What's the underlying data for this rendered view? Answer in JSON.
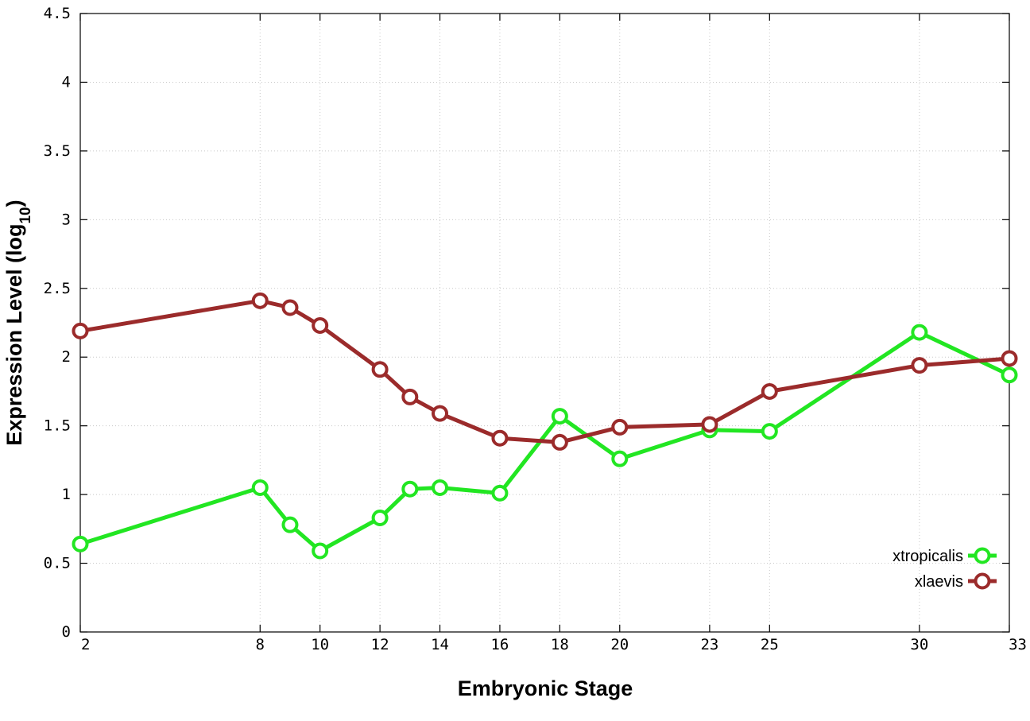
{
  "chart_data": {
    "type": "line",
    "title": "",
    "xlabel": "Embryonic Stage",
    "ylabel_main": "Expression Level (log",
    "ylabel_sub": "10",
    "ylabel_close": ")",
    "xlim": [
      2,
      33
    ],
    "ylim": [
      0,
      4.5
    ],
    "x_ticks": [
      2,
      8,
      10,
      12,
      14,
      16,
      18,
      20,
      23,
      25,
      30,
      33
    ],
    "x_tick_labels": [
      "2",
      "8",
      "10",
      "12",
      "14",
      "16",
      "18",
      "20",
      "23",
      "25",
      "30",
      "33"
    ],
    "y_ticks": [
      0,
      0.5,
      1,
      1.5,
      2,
      2.5,
      3,
      3.5,
      4,
      4.5
    ],
    "y_tick_labels": [
      "0",
      "0.5",
      "1",
      "1.5",
      "2",
      "2.5",
      "3",
      "3.5",
      "4",
      "4.5"
    ],
    "grid": true,
    "legend_position": "bottom-right",
    "series": [
      {
        "name": "xtropicalis",
        "color": "#22e622",
        "x": [
          2,
          8,
          9,
          10,
          12,
          13,
          14,
          16,
          18,
          20,
          23,
          25,
          30,
          33
        ],
        "y": [
          0.64,
          1.05,
          0.78,
          0.59,
          0.83,
          1.04,
          1.05,
          1.01,
          1.57,
          1.26,
          1.47,
          1.46,
          2.18,
          1.87
        ]
      },
      {
        "name": "xlaevis",
        "color": "#9b2b2b",
        "x": [
          2,
          8,
          9,
          10,
          12,
          13,
          14,
          16,
          18,
          20,
          23,
          25,
          30,
          33
        ],
        "y": [
          2.19,
          2.41,
          2.36,
          2.23,
          1.91,
          1.71,
          1.59,
          1.41,
          1.38,
          1.49,
          1.51,
          1.75,
          1.94,
          1.99
        ]
      }
    ]
  }
}
